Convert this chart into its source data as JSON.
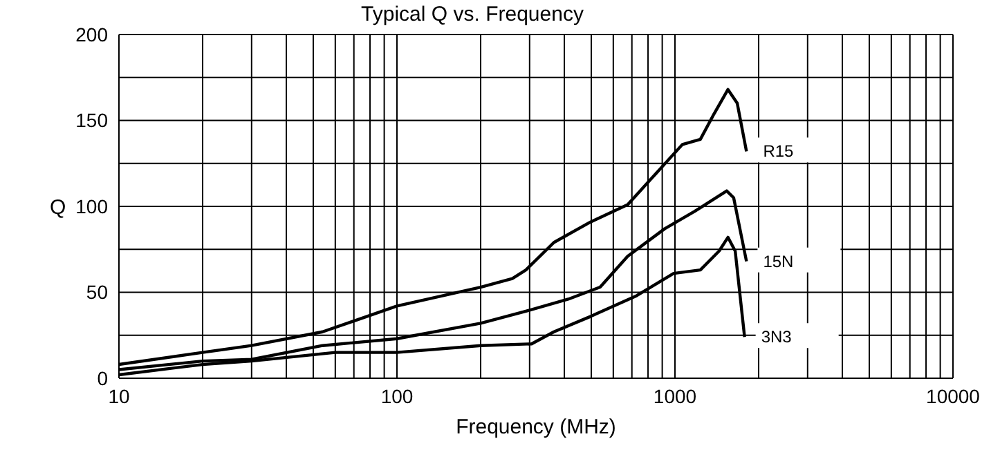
{
  "chart_data": {
    "type": "line",
    "title": "Typical Q vs. Frequency",
    "xlabel": "Frequency (MHz)",
    "ylabel": "Q",
    "log": "x",
    "grid": true,
    "legend": false,
    "marker": "none",
    "line_style": "solid",
    "xlim": [
      10,
      10000
    ],
    "ylim": [
      0,
      200
    ],
    "xticks": [
      10,
      {
        "value": 20,
        "label": null
      },
      {
        "value": 30,
        "label": null
      },
      {
        "value": 40,
        "label": null
      },
      {
        "value": 50,
        "label": null
      },
      {
        "value": 60,
        "label": null
      },
      {
        "value": 70,
        "label": null
      },
      {
        "value": 80,
        "label": null
      },
      {
        "value": 90,
        "label": null
      },
      100,
      {
        "value": 200,
        "label": null
      },
      {
        "value": 300,
        "label": null
      },
      {
        "value": 400,
        "label": null
      },
      {
        "value": 500,
        "label": null
      },
      {
        "value": 600,
        "label": null
      },
      {
        "value": 700,
        "label": null
      },
      {
        "value": 800,
        "label": null
      },
      {
        "value": 900,
        "label": null
      },
      1000,
      {
        "value": 2000,
        "label": null
      },
      {
        "value": 3000,
        "label": null
      },
      {
        "value": 4000,
        "label": null
      },
      {
        "value": 5000,
        "label": null
      },
      {
        "value": 6000,
        "label": null
      },
      {
        "value": 7000,
        "label": null
      },
      {
        "value": 8000,
        "label": null
      },
      {
        "value": 9000,
        "label": null
      },
      10000
    ],
    "yticks": [
      0,
      {
        "value": 25,
        "label": null
      },
      50,
      {
        "value": 75,
        "label": null
      },
      100,
      {
        "value": 125,
        "label": null
      },
      150,
      {
        "value": 175,
        "label": null
      },
      200
    ],
    "series": [
      {
        "name": "R15",
        "color": "#000000",
        "x": [
          10,
          20,
          30,
          54,
          100,
          200,
          260,
          291,
          367,
          498,
          676,
          853,
          1063,
          1234,
          1384,
          1551,
          1675,
          1808
        ],
        "values": [
          8,
          15,
          19,
          27,
          42,
          53,
          58,
          63,
          79,
          91,
          101,
          119,
          136,
          139,
          154,
          168,
          160,
          132
        ]
      },
      {
        "name": "15N",
        "color": "#000000",
        "x": [
          10,
          20,
          30,
          54,
          100,
          200,
          291,
          413,
          538,
          676,
          919,
          1175,
          1535,
          1626,
          1808
        ],
        "values": [
          5,
          10,
          11,
          19,
          23,
          32,
          39,
          46,
          53,
          71,
          87,
          97,
          109,
          105,
          68
        ]
      },
      {
        "name": "3N3",
        "color": "#000000",
        "x": [
          10,
          20,
          30,
          60,
          100,
          200,
          305,
          367,
          498,
          728,
          989,
          1234,
          1441,
          1551,
          1647,
          1780
        ],
        "values": [
          2,
          8,
          10,
          15,
          15,
          19,
          20,
          27,
          36,
          48,
          61,
          63,
          74,
          82,
          74,
          24
        ]
      }
    ]
  }
}
